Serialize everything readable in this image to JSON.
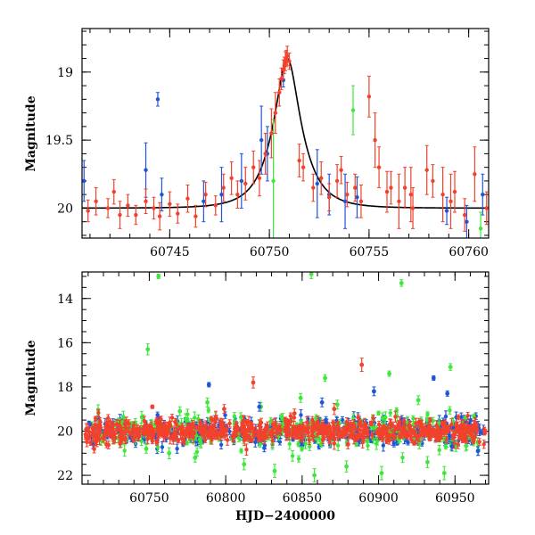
{
  "chart_data": [
    {
      "type": "scatter",
      "panel": "top",
      "title": "",
      "xlabel": "",
      "ylabel": "Magnitude",
      "xlim": [
        60740.6,
        60761.0
      ],
      "ylim": [
        20.22,
        18.68
      ],
      "y_inverted": true,
      "x_ticks": [
        60745,
        60750,
        60755,
        60760
      ],
      "x_tick_labels": [
        "60745",
        "60750",
        "60755",
        "60760"
      ],
      "x_minor_step": 1,
      "y_ticks": [
        19,
        19.5,
        20
      ],
      "y_tick_labels": [
        "19",
        "19.5",
        "20"
      ],
      "y_minor_step": 0.1,
      "model_curve": {
        "name": "model",
        "color": "#000000",
        "t0": 60750.9,
        "baseline": 20.0,
        "peak": 18.9,
        "tE": 1.35
      },
      "series": [
        {
          "name": "red",
          "color": "#f2412c",
          "points": [
            [
              60740.9,
              20.02,
              0.08
            ],
            [
              60741.3,
              19.95,
              0.1
            ],
            [
              60741.9,
              20.0,
              0.07
            ],
            [
              60742.2,
              19.88,
              0.09
            ],
            [
              60742.5,
              20.05,
              0.1
            ],
            [
              60742.9,
              19.98,
              0.08
            ],
            [
              60743.3,
              20.05,
              0.07
            ],
            [
              60743.8,
              19.95,
              0.09
            ],
            [
              60744.2,
              20.0,
              0.08
            ],
            [
              60744.5,
              20.06,
              0.1
            ],
            [
              60745.0,
              19.97,
              0.09
            ],
            [
              60745.4,
              20.04,
              0.07
            ],
            [
              60745.9,
              19.93,
              0.1
            ],
            [
              60746.3,
              20.06,
              0.08
            ],
            [
              60746.8,
              19.9,
              0.09
            ],
            [
              60747.3,
              19.98,
              0.07
            ],
            [
              60747.7,
              19.85,
              0.1
            ],
            [
              60748.1,
              19.78,
              0.12
            ],
            [
              60748.4,
              19.9,
              0.1
            ],
            [
              60748.8,
              19.82,
              0.12
            ],
            [
              60749.2,
              19.7,
              0.12
            ],
            [
              60749.5,
              19.78,
              0.13
            ],
            [
              60749.8,
              19.6,
              0.15
            ],
            [
              60750.1,
              19.45,
              0.18
            ],
            [
              60750.3,
              19.3,
              0.15
            ],
            [
              60750.5,
              19.15,
              0.1
            ],
            [
              60750.6,
              19.05,
              0.08
            ],
            [
              60750.7,
              18.98,
              0.07
            ],
            [
              60750.75,
              18.95,
              0.06
            ],
            [
              60750.8,
              18.92,
              0.07
            ],
            [
              60750.85,
              18.9,
              0.06
            ],
            [
              60750.9,
              18.88,
              0.07
            ],
            [
              60751.0,
              18.92,
              0.06
            ],
            [
              60751.5,
              19.65,
              0.12
            ],
            [
              60751.7,
              19.7,
              0.1
            ],
            [
              60752.2,
              19.85,
              0.1
            ],
            [
              60752.6,
              19.78,
              0.12
            ],
            [
              60753.0,
              19.92,
              0.1
            ],
            [
              60753.4,
              19.8,
              0.12
            ],
            [
              60753.6,
              19.72,
              0.1
            ],
            [
              60753.9,
              19.9,
              0.09
            ],
            [
              60754.3,
              19.85,
              0.1
            ],
            [
              60754.6,
              19.95,
              0.12
            ],
            [
              60755.0,
              19.18,
              0.15
            ],
            [
              60755.3,
              19.5,
              0.2
            ],
            [
              60755.5,
              19.7,
              0.15
            ],
            [
              60755.9,
              19.88,
              0.15
            ],
            [
              60756.1,
              19.85,
              0.12
            ],
            [
              60756.5,
              19.95,
              0.2
            ],
            [
              60756.8,
              19.85,
              0.15
            ],
            [
              60757.1,
              19.9,
              0.2
            ],
            [
              60757.2,
              20.0,
              0.15
            ],
            [
              60757.9,
              19.72,
              0.18
            ],
            [
              60758.2,
              19.8,
              0.12
            ],
            [
              60758.7,
              19.9,
              0.2
            ],
            [
              60759.1,
              19.95,
              0.2
            ],
            [
              60759.3,
              19.88,
              0.15
            ],
            [
              60759.8,
              20.05,
              0.12
            ],
            [
              60760.3,
              19.75,
              0.2
            ],
            [
              60760.9,
              20.0,
              0.12
            ]
          ]
        },
        {
          "name": "blue",
          "color": "#1f55d8",
          "points": [
            [
              60740.7,
              19.8,
              0.15
            ],
            [
              60743.8,
              19.72,
              0.2
            ],
            [
              60744.4,
              19.2,
              0.05
            ],
            [
              60744.6,
              19.9,
              0.12
            ],
            [
              60746.7,
              19.95,
              0.15
            ],
            [
              60747.6,
              19.9,
              0.2
            ],
            [
              60748.6,
              19.8,
              0.2
            ],
            [
              60749.6,
              19.5,
              0.25
            ],
            [
              60749.9,
              19.6,
              0.2
            ],
            [
              60750.7,
              19.06,
              0.05
            ],
            [
              60752.4,
              19.82,
              0.25
            ],
            [
              60753.0,
              19.9,
              0.15
            ],
            [
              60753.8,
              19.95,
              0.2
            ],
            [
              60754.4,
              19.92,
              0.15
            ],
            [
              60758.9,
              20.02,
              0.1
            ],
            [
              60759.9,
              20.1,
              0.12
            ],
            [
              60760.7,
              19.9,
              0.15
            ]
          ]
        },
        {
          "name": "green",
          "color": "#3ee83a",
          "points": [
            [
              60750.2,
              19.8,
              0.45
            ],
            [
              60754.2,
              19.28,
              0.18
            ],
            [
              60760.6,
              20.15,
              0.12
            ]
          ]
        }
      ]
    },
    {
      "type": "scatter",
      "panel": "bottom",
      "title": "",
      "xlabel": "HJD−2400000",
      "ylabel": "Magnitude",
      "xlim": [
        60706.0,
        60972.0
      ],
      "ylim": [
        22.4,
        12.8
      ],
      "y_inverted": true,
      "x_ticks": [
        60750,
        60800,
        60850,
        60900,
        60950
      ],
      "x_tick_labels": [
        "60750",
        "60800",
        "60850",
        "60900",
        "60950"
      ],
      "x_minor_step": 10,
      "y_ticks": [
        14,
        16,
        18,
        20,
        22
      ],
      "y_tick_labels": [
        "14",
        "16",
        "18",
        "20",
        "22"
      ],
      "y_minor_step": 0.5,
      "baseline_band": {
        "mag": 20.0,
        "scatter": 0.35
      },
      "outliers": [
        {
          "series": "green",
          "points": [
            [
              60756,
              13.0,
              0.1
            ],
            [
              60749,
              16.3,
              0.25
            ],
            [
              60856,
              12.9,
              0.2
            ],
            [
              60866,
              12.6,
              0.15
            ],
            [
              60915,
              13.3,
              0.15
            ],
            [
              60865,
              17.6,
              0.15
            ],
            [
              60907,
              17.4,
              0.12
            ],
            [
              60947,
              17.1,
              0.15
            ],
            [
              60748,
              20.8,
              0.2
            ],
            [
              60780,
              21.2,
              0.2
            ],
            [
              60812,
              21.5,
              0.25
            ],
            [
              60832,
              21.8,
              0.3
            ],
            [
              60858,
              22.0,
              0.3
            ],
            [
              60879,
              21.6,
              0.25
            ],
            [
              60902,
              21.9,
              0.3
            ],
            [
              60932,
              21.4,
              0.25
            ],
            [
              60788,
              18.7,
              0.2
            ],
            [
              60823,
              18.9,
              0.2
            ],
            [
              60849,
              18.5,
              0.2
            ],
            [
              60873,
              18.8,
              0.2
            ],
            [
              60926,
              18.6,
              0.2
            ],
            [
              60770,
              19.1,
              0.2
            ],
            [
              60763,
              21.0,
              0.25
            ],
            [
              60943,
              21.9,
              0.3
            ]
          ]
        },
        {
          "series": "red",
          "points": [
            [
              60818,
              17.8,
              0.25
            ],
            [
              60889,
              17.0,
              0.3
            ],
            [
              60752,
              18.9,
              0.08
            ],
            [
              60799,
              19.0,
              0.2
            ],
            [
              60845,
              19.2,
              0.2
            ],
            [
              60871,
              19.0,
              0.25
            ],
            [
              60732,
              20.4,
              0.15
            ],
            [
              60755,
              20.5,
              0.15
            ],
            [
              60880,
              20.6,
              0.2
            ],
            [
              60722,
              20.6,
              0.15
            ]
          ]
        },
        {
          "series": "blue",
          "points": [
            [
              60789,
              17.9,
              0.1
            ],
            [
              60936,
              17.6,
              0.1
            ],
            [
              60945,
              18.3,
              0.12
            ],
            [
              60822,
              18.9,
              0.2
            ],
            [
              60863,
              18.7,
              0.2
            ],
            [
              60897,
              18.2,
              0.2
            ],
            [
              60948,
              20.7,
              0.2
            ],
            [
              60965,
              20.9,
              0.2
            ]
          ]
        }
      ],
      "dense_segments": [
        {
          "series": "blue",
          "x_start": 60710,
          "x_end": 60970,
          "count": 420,
          "scatter": 0.3
        },
        {
          "series": "green",
          "x_start": 60712,
          "x_end": 60968,
          "count": 260,
          "scatter": 0.45
        },
        {
          "series": "red",
          "x_start": 60708,
          "x_end": 60970,
          "count": 650,
          "scatter": 0.25
        }
      ],
      "series": [
        {
          "name": "red",
          "color": "#f2412c"
        },
        {
          "name": "blue",
          "color": "#1f55d8"
        },
        {
          "name": "green",
          "color": "#3ee83a"
        }
      ]
    }
  ]
}
